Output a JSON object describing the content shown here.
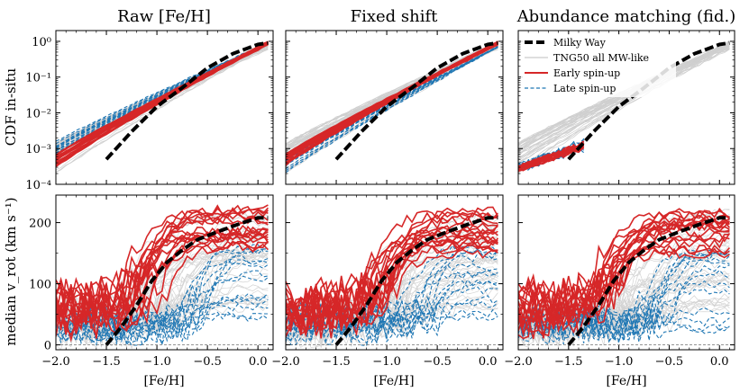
{
  "chart_data": {
    "type": "line",
    "panel_titles": [
      "Raw [Fe/H]",
      "Fixed shift",
      "Abundance matching (fid.)"
    ],
    "xlabel": "[Fe/H]",
    "xlim": [
      -2.0,
      0.15
    ],
    "xticks": [
      -2.0,
      -1.5,
      -1.0,
      -0.5,
      0.0
    ],
    "xtick_labels": [
      "−2.0",
      "−1.5",
      "−1.0",
      "−0.5",
      "0.0"
    ],
    "top_row": {
      "ylabel": "CDF in-situ",
      "yscale": "log",
      "ylim": [
        0.0001,
        2.0
      ],
      "yticks": [
        0.0001,
        0.001,
        0.01,
        0.1,
        1
      ],
      "ytick_labels": [
        "10⁻⁴",
        "10⁻³",
        "10⁻²",
        "10⁻¹",
        "10⁰"
      ]
    },
    "bottom_row": {
      "ylabel": "median v_rot (km s⁻¹)",
      "ylim": [
        -8,
        245
      ],
      "yticks": [
        0,
        100,
        200
      ],
      "ytick_labels": [
        "0",
        "100",
        "200"
      ],
      "zero_line": true
    },
    "legend": {
      "position": "top-right panel, upper-left",
      "entries": [
        {
          "label": "Milky Way",
          "style": "black-thick-dashed"
        },
        {
          "label": "TNG50 all MW-like",
          "style": "grey-thin"
        },
        {
          "label": "Early spin-up",
          "style": "red-solid"
        },
        {
          "label": "Late spin-up",
          "style": "blue-dashed"
        }
      ]
    },
    "series": {
      "milky_way": {
        "cdf_raw": {
          "x": [
            -1.5,
            -1.25,
            -1.0,
            -0.75,
            -0.5,
            -0.25,
            0.0,
            0.1
          ],
          "y": [
            0.0005,
            0.003,
            0.015,
            0.05,
            0.18,
            0.45,
            0.82,
            0.9
          ]
        },
        "cdf_shift": {
          "x": [
            -1.5,
            -1.25,
            -1.0,
            -0.75,
            -0.5,
            -0.25,
            0.0,
            0.1
          ],
          "y": [
            0.0005,
            0.003,
            0.015,
            0.05,
            0.18,
            0.45,
            0.82,
            0.9
          ]
        },
        "cdf_abund": {
          "x": [
            -1.5,
            -1.25,
            -1.0,
            -0.75,
            -0.5,
            -0.25,
            0.0,
            0.1
          ],
          "y": [
            0.0005,
            0.003,
            0.015,
            0.05,
            0.18,
            0.45,
            0.82,
            0.9
          ]
        },
        "vrot": {
          "x": [
            -1.5,
            -1.35,
            -1.2,
            -1.05,
            -0.9,
            -0.75,
            -0.6,
            -0.4,
            -0.2,
            0.0,
            0.1
          ],
          "y": [
            0,
            30,
            65,
            105,
            135,
            155,
            172,
            185,
            197,
            208,
            208
          ]
        }
      },
      "early_spinup_cdf": {
        "count": 18,
        "x_start": -2.0,
        "x_end": 0.1,
        "y_start_range": [
          0.0003,
          0.0007
        ],
        "y_end": 0.85
      },
      "late_spinup_cdf": {
        "count": 14,
        "x_start": -2.0,
        "x_end": 0.1,
        "y_start_range": [
          0.0007,
          0.0016
        ],
        "y_end": 0.9
      },
      "early_spinup_vrot": {
        "count": 18,
        "plateau_range": [
          150,
          222
        ],
        "rise_center_range": [
          -1.25,
          -0.85
        ]
      },
      "late_spinup_vrot": {
        "count": 14,
        "plateau_range": [
          20,
          160
        ],
        "rise_center_range": [
          -0.75,
          -0.4
        ]
      }
    }
  }
}
